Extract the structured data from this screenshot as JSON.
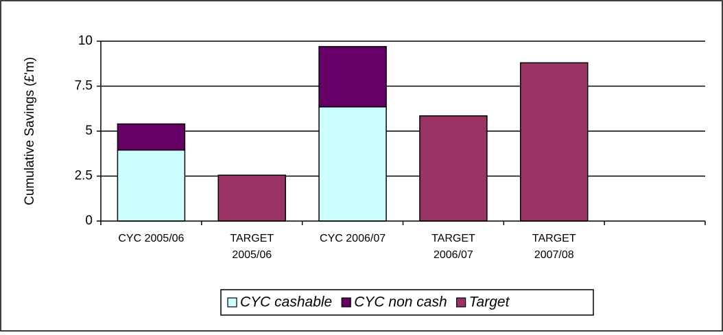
{
  "chart_data": {
    "type": "stacked_bar",
    "y_label": "Cumulative Savings (£'m)",
    "categories": [
      "CYC 2005/06",
      "TARGET 2005/06",
      "CYC 2006/07",
      "TARGET 2006/07",
      "TARGET 2007/08",
      null
    ],
    "series": [
      {
        "name": "CYC cashable",
        "color": "#ccffff",
        "values": [
          3.95,
          null,
          6.35,
          null,
          null,
          null
        ]
      },
      {
        "name": "CYC non cash",
        "color": "#660066",
        "values": [
          1.45,
          null,
          3.35,
          null,
          null,
          null
        ]
      },
      {
        "name": "Target",
        "color": "#993366",
        "values": [
          null,
          2.55,
          null,
          5.85,
          8.8,
          null
        ]
      }
    ],
    "ylim": [
      0,
      10
    ],
    "yticks": [
      0,
      2.5,
      5,
      7.5,
      10
    ],
    "grid": true,
    "legend": "bottom"
  }
}
